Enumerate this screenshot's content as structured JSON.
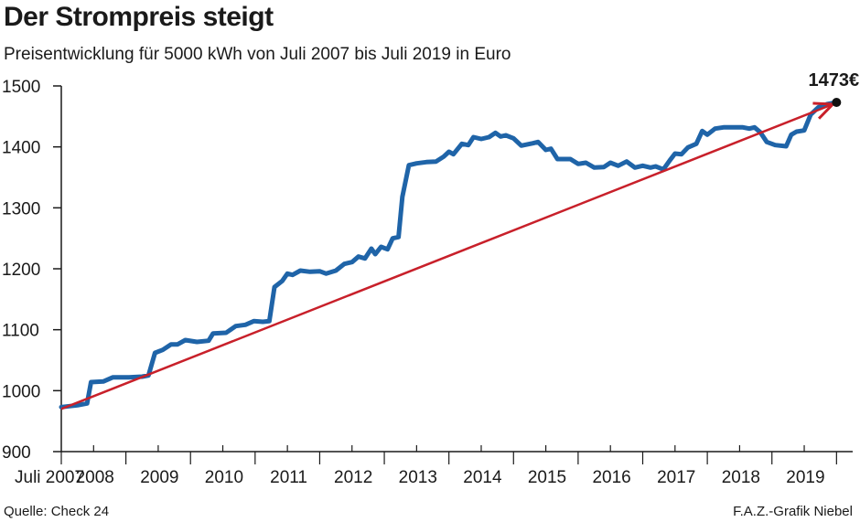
{
  "header": {
    "title": "Der Strompreis steigt",
    "subtitle": "Preisentwicklung für 5000 kWh von Juli 2007 bis Juli 2019 in Euro"
  },
  "footer": {
    "source": "Quelle: Check 24",
    "credit": "F.A.Z.-Grafik Niebel"
  },
  "colors": {
    "price_line": "#1f64a8",
    "trend_arrow": "#c8202a",
    "axis": "#1a1a1a"
  },
  "chart_data": {
    "type": "line",
    "title": "Der Strompreis steigt",
    "subtitle": "Preisentwicklung für 5000 kWh von Juli 2007 bis Juli 2019 in Euro",
    "xlabel": "",
    "ylabel": "",
    "ylim": [
      900,
      1500
    ],
    "xlim": [
      2007.5,
      2019.75
    ],
    "yticks": [
      900,
      1000,
      1100,
      1200,
      1300,
      1400,
      1500
    ],
    "xtick_labels": [
      {
        "x": 2007.5,
        "label": "Juli 2007"
      },
      {
        "x": 2008,
        "label": "2008"
      },
      {
        "x": 2009,
        "label": "2009"
      },
      {
        "x": 2010,
        "label": "2010"
      },
      {
        "x": 2011,
        "label": "2011"
      },
      {
        "x": 2012,
        "label": "2012"
      },
      {
        "x": 2013,
        "label": "2013"
      },
      {
        "x": 2014,
        "label": "2014"
      },
      {
        "x": 2015,
        "label": "2015"
      },
      {
        "x": 2016,
        "label": "2016"
      },
      {
        "x": 2017,
        "label": "2017"
      },
      {
        "x": 2018,
        "label": "2018"
      },
      {
        "x": 2019,
        "label": "2019"
      }
    ],
    "grid": false,
    "legend": "none",
    "end_label": "1473€",
    "series": [
      {
        "values": [
          [
            2007.5,
            973
          ],
          [
            2007.75,
            976
          ],
          [
            2007.9,
            979
          ],
          [
            2007.96,
            1014
          ],
          [
            2008.15,
            1015
          ],
          [
            2008.3,
            1022
          ],
          [
            2008.55,
            1022
          ],
          [
            2008.75,
            1023
          ],
          [
            2008.85,
            1025
          ],
          [
            2008.95,
            1062
          ],
          [
            2009.07,
            1067
          ],
          [
            2009.2,
            1076
          ],
          [
            2009.3,
            1076
          ],
          [
            2009.42,
            1083
          ],
          [
            2009.6,
            1080
          ],
          [
            2009.78,
            1082
          ],
          [
            2009.85,
            1094
          ],
          [
            2010.05,
            1095
          ],
          [
            2010.2,
            1106
          ],
          [
            2010.35,
            1108
          ],
          [
            2010.48,
            1114
          ],
          [
            2010.62,
            1113
          ],
          [
            2010.72,
            1114
          ],
          [
            2010.8,
            1170
          ],
          [
            2010.92,
            1180
          ],
          [
            2011.0,
            1192
          ],
          [
            2011.08,
            1190
          ],
          [
            2011.2,
            1197
          ],
          [
            2011.35,
            1195
          ],
          [
            2011.5,
            1196
          ],
          [
            2011.6,
            1192
          ],
          [
            2011.75,
            1197
          ],
          [
            2011.88,
            1208
          ],
          [
            2012.0,
            1211
          ],
          [
            2012.1,
            1220
          ],
          [
            2012.2,
            1217
          ],
          [
            2012.3,
            1233
          ],
          [
            2012.36,
            1224
          ],
          [
            2012.45,
            1236
          ],
          [
            2012.55,
            1232
          ],
          [
            2012.63,
            1250
          ],
          [
            2012.72,
            1252
          ],
          [
            2012.78,
            1318
          ],
          [
            2012.88,
            1370
          ],
          [
            2013.0,
            1373
          ],
          [
            2013.15,
            1375
          ],
          [
            2013.3,
            1376
          ],
          [
            2013.42,
            1384
          ],
          [
            2013.5,
            1392
          ],
          [
            2013.57,
            1388
          ],
          [
            2013.7,
            1405
          ],
          [
            2013.8,
            1403
          ],
          [
            2013.88,
            1416
          ],
          [
            2014.0,
            1413
          ],
          [
            2014.12,
            1416
          ],
          [
            2014.22,
            1423
          ],
          [
            2014.3,
            1417
          ],
          [
            2014.38,
            1419
          ],
          [
            2014.5,
            1414
          ],
          [
            2014.62,
            1402
          ],
          [
            2014.8,
            1406
          ],
          [
            2014.88,
            1408
          ],
          [
            2015.0,
            1395
          ],
          [
            2015.08,
            1397
          ],
          [
            2015.18,
            1380
          ],
          [
            2015.38,
            1380
          ],
          [
            2015.5,
            1372
          ],
          [
            2015.62,
            1374
          ],
          [
            2015.75,
            1366
          ],
          [
            2015.9,
            1367
          ],
          [
            2016.0,
            1374
          ],
          [
            2016.12,
            1369
          ],
          [
            2016.25,
            1376
          ],
          [
            2016.38,
            1366
          ],
          [
            2016.5,
            1369
          ],
          [
            2016.62,
            1366
          ],
          [
            2016.7,
            1368
          ],
          [
            2016.82,
            1363
          ],
          [
            2016.92,
            1378
          ],
          [
            2017.0,
            1389
          ],
          [
            2017.1,
            1388
          ],
          [
            2017.2,
            1399
          ],
          [
            2017.33,
            1405
          ],
          [
            2017.42,
            1426
          ],
          [
            2017.5,
            1420
          ],
          [
            2017.62,
            1430
          ],
          [
            2017.75,
            1432
          ],
          [
            2017.88,
            1432
          ],
          [
            2018.05,
            1432
          ],
          [
            2018.15,
            1430
          ],
          [
            2018.23,
            1432
          ],
          [
            2018.32,
            1424
          ],
          [
            2018.42,
            1408
          ],
          [
            2018.55,
            1403
          ],
          [
            2018.72,
            1401
          ],
          [
            2018.8,
            1420
          ],
          [
            2018.88,
            1425
          ],
          [
            2019.0,
            1427
          ],
          [
            2019.1,
            1453
          ],
          [
            2019.22,
            1465
          ],
          [
            2019.35,
            1470
          ],
          [
            2019.5,
            1473
          ]
        ]
      },
      {
        "values": [
          [
            2007.5,
            970
          ],
          [
            2019.5,
            1473
          ]
        ]
      }
    ]
  }
}
